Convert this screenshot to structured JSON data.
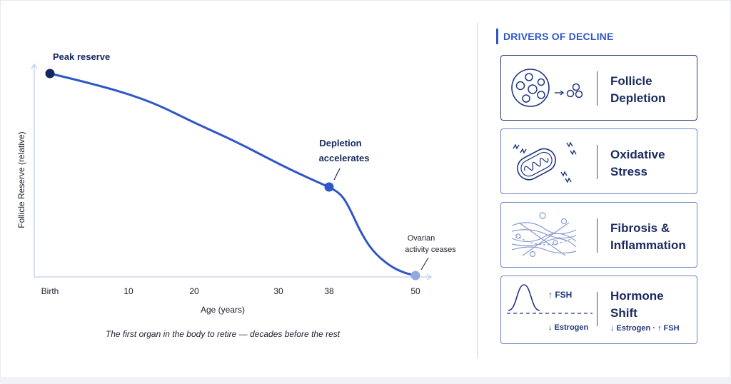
{
  "chart_data": {
    "type": "line",
    "ylabel": "Follicle Reserve (relative)",
    "xlabel": "Age (years)",
    "x_ticks": [
      "Birth",
      "10",
      "20",
      "30",
      "38",
      "50"
    ],
    "x": [
      0,
      5,
      10,
      15,
      20,
      25,
      30,
      35,
      38,
      40,
      42,
      44,
      46,
      48,
      50
    ],
    "y": [
      1.0,
      0.93,
      0.85,
      0.74,
      0.64,
      0.53,
      0.43,
      0.36,
      0.31,
      0.27,
      0.2,
      0.13,
      0.07,
      0.03,
      0.0
    ],
    "markers": [
      {
        "x": 0,
        "y": 1.0,
        "label": "Peak reserve",
        "color": "#14275e"
      },
      {
        "x": 38,
        "y": 0.31,
        "label_lines": [
          "Depletion",
          "accelerates"
        ],
        "color": "#2f56c8"
      },
      {
        "x": 50,
        "y": 0.0,
        "label_lines": [
          "Ovarian",
          "activity ceases"
        ],
        "color": "#93a8df"
      }
    ],
    "caption": "The first organ in the body to retire — decades before the rest",
    "colors": {
      "line": "#2f56c8",
      "axis": "#c3cce6",
      "text": "#1a1f2e"
    }
  },
  "drivers": {
    "title": "DRIVERS OF DECLINE",
    "cards": [
      {
        "lines": [
          "Follicle",
          "Depletion"
        ],
        "icon": "follicle-icon"
      },
      {
        "lines": [
          "Oxidative",
          "Stress"
        ],
        "icon": "mitochondria-icon"
      },
      {
        "lines": [
          "Fibrosis &",
          "Inflammation"
        ],
        "icon": "fibers-icon"
      },
      {
        "lines": [
          "Hormone",
          "Shift"
        ],
        "icon": "hormone-curve-icon",
        "sub": "↓ Estrogen · ↑ FSH",
        "fsh": "↑ FSH",
        "estrogen": "↓ Estrogen"
      }
    ]
  }
}
